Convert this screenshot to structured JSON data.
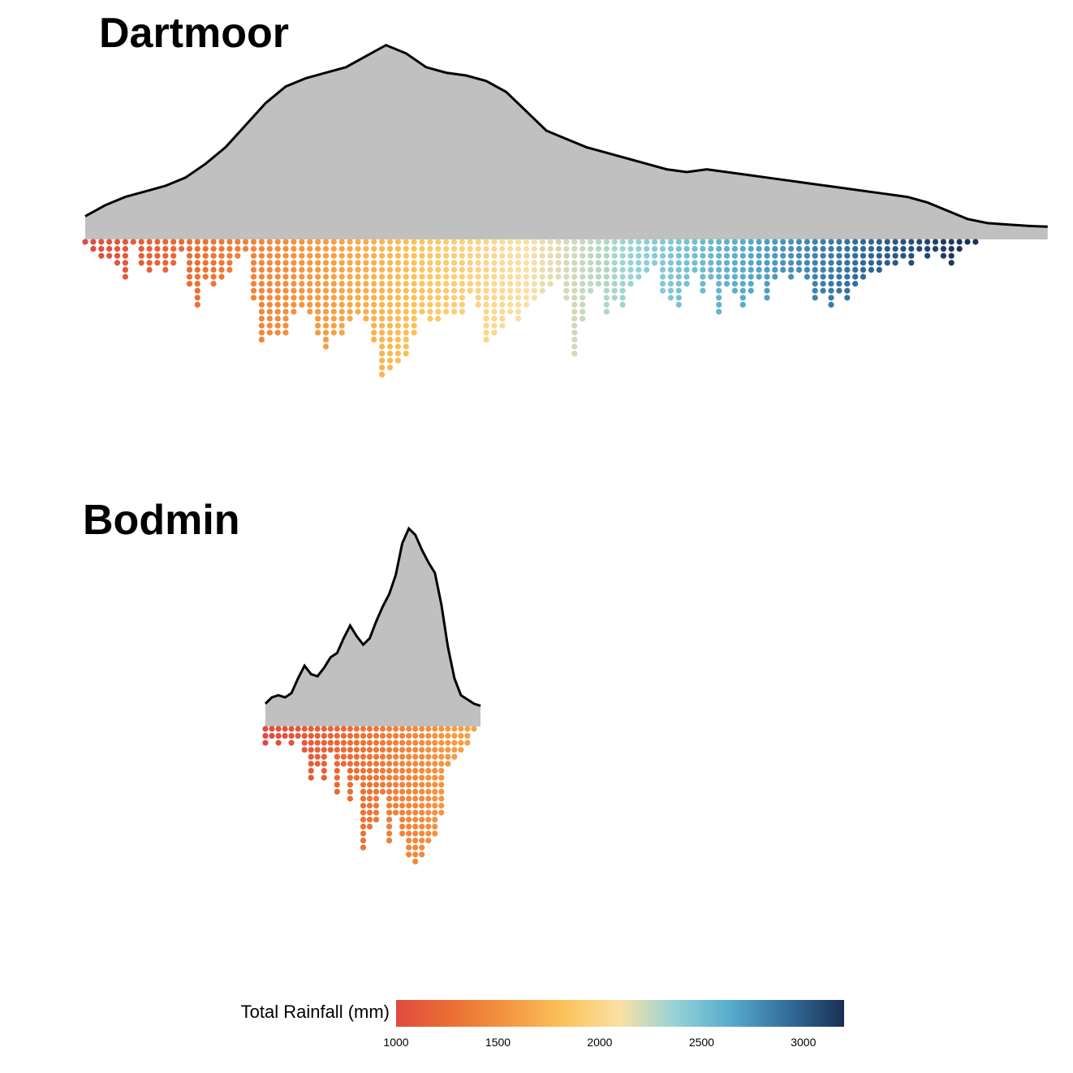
{
  "chart_data": {
    "type": "dotplot",
    "x_scale": {
      "min": 1000,
      "max": 3200
    },
    "panels": [
      {
        "title": "Dartmoor",
        "density": [
          [
            1000,
            0.04
          ],
          [
            1050,
            0.08
          ],
          [
            1100,
            0.11
          ],
          [
            1150,
            0.13
          ],
          [
            1200,
            0.15
          ],
          [
            1250,
            0.18
          ],
          [
            1300,
            0.23
          ],
          [
            1350,
            0.29
          ],
          [
            1400,
            0.37
          ],
          [
            1450,
            0.45
          ],
          [
            1500,
            0.51
          ],
          [
            1550,
            0.54
          ],
          [
            1600,
            0.56
          ],
          [
            1650,
            0.58
          ],
          [
            1700,
            0.62
          ],
          [
            1750,
            0.66
          ],
          [
            1800,
            0.63
          ],
          [
            1850,
            0.58
          ],
          [
            1900,
            0.56
          ],
          [
            1950,
            0.55
          ],
          [
            2000,
            0.53
          ],
          [
            2050,
            0.49
          ],
          [
            2100,
            0.42
          ],
          [
            2150,
            0.35
          ],
          [
            2200,
            0.32
          ],
          [
            2250,
            0.29
          ],
          [
            2300,
            0.27
          ],
          [
            2350,
            0.25
          ],
          [
            2400,
            0.23
          ],
          [
            2450,
            0.21
          ],
          [
            2500,
            0.2
          ],
          [
            2550,
            0.21
          ],
          [
            2600,
            0.2
          ],
          [
            2650,
            0.19
          ],
          [
            2700,
            0.18
          ],
          [
            2750,
            0.17
          ],
          [
            2800,
            0.16
          ],
          [
            2850,
            0.15
          ],
          [
            2900,
            0.14
          ],
          [
            2950,
            0.13
          ],
          [
            3000,
            0.12
          ],
          [
            3050,
            0.11
          ],
          [
            3100,
            0.09
          ],
          [
            3150,
            0.06
          ],
          [
            3200,
            0.03
          ],
          [
            3250,
            0.015
          ],
          [
            3300,
            0.01
          ],
          [
            3350,
            0.005
          ],
          [
            3400,
            0.002
          ]
        ],
        "stacks": [
          [
            1000,
            1
          ],
          [
            1020,
            2
          ],
          [
            1040,
            3
          ],
          [
            1060,
            3
          ],
          [
            1080,
            4
          ],
          [
            1100,
            6
          ],
          [
            1120,
            1
          ],
          [
            1140,
            4
          ],
          [
            1160,
            5
          ],
          [
            1180,
            4
          ],
          [
            1200,
            5
          ],
          [
            1220,
            4
          ],
          [
            1240,
            2
          ],
          [
            1260,
            7
          ],
          [
            1280,
            10
          ],
          [
            1300,
            6
          ],
          [
            1320,
            7
          ],
          [
            1340,
            6
          ],
          [
            1360,
            5
          ],
          [
            1380,
            3
          ],
          [
            1400,
            2
          ],
          [
            1420,
            9
          ],
          [
            1440,
            15
          ],
          [
            1460,
            14
          ],
          [
            1480,
            14
          ],
          [
            1500,
            14
          ],
          [
            1520,
            11
          ],
          [
            1540,
            10
          ],
          [
            1560,
            11
          ],
          [
            1580,
            14
          ],
          [
            1600,
            16
          ],
          [
            1620,
            14
          ],
          [
            1640,
            14
          ],
          [
            1660,
            12
          ],
          [
            1680,
            11
          ],
          [
            1700,
            12
          ],
          [
            1720,
            15
          ],
          [
            1740,
            20
          ],
          [
            1760,
            19
          ],
          [
            1780,
            18
          ],
          [
            1800,
            17
          ],
          [
            1820,
            14
          ],
          [
            1840,
            11
          ],
          [
            1860,
            12
          ],
          [
            1880,
            12
          ],
          [
            1900,
            11
          ],
          [
            1920,
            11
          ],
          [
            1940,
            11
          ],
          [
            1960,
            8
          ],
          [
            1980,
            10
          ],
          [
            2000,
            15
          ],
          [
            2020,
            14
          ],
          [
            2040,
            13
          ],
          [
            2060,
            11
          ],
          [
            2080,
            12
          ],
          [
            2100,
            10
          ],
          [
            2120,
            9
          ],
          [
            2140,
            8
          ],
          [
            2160,
            7
          ],
          [
            2180,
            6
          ],
          [
            2200,
            9
          ],
          [
            2220,
            17
          ],
          [
            2240,
            12
          ],
          [
            2260,
            8
          ],
          [
            2280,
            7
          ],
          [
            2300,
            11
          ],
          [
            2320,
            9
          ],
          [
            2340,
            10
          ],
          [
            2360,
            7
          ],
          [
            2380,
            6
          ],
          [
            2400,
            5
          ],
          [
            2420,
            4
          ],
          [
            2440,
            8
          ],
          [
            2460,
            9
          ],
          [
            2480,
            10
          ],
          [
            2500,
            7
          ],
          [
            2520,
            5
          ],
          [
            2540,
            8
          ],
          [
            2560,
            6
          ],
          [
            2580,
            11
          ],
          [
            2600,
            7
          ],
          [
            2620,
            8
          ],
          [
            2640,
            10
          ],
          [
            2660,
            8
          ],
          [
            2680,
            6
          ],
          [
            2700,
            9
          ],
          [
            2720,
            6
          ],
          [
            2740,
            5
          ],
          [
            2760,
            6
          ],
          [
            2780,
            5
          ],
          [
            2800,
            6
          ],
          [
            2820,
            9
          ],
          [
            2840,
            8
          ],
          [
            2860,
            10
          ],
          [
            2880,
            8
          ],
          [
            2900,
            9
          ],
          [
            2920,
            7
          ],
          [
            2940,
            6
          ],
          [
            2960,
            5
          ],
          [
            2980,
            5
          ],
          [
            3000,
            4
          ],
          [
            3020,
            4
          ],
          [
            3040,
            3
          ],
          [
            3060,
            4
          ],
          [
            3080,
            2
          ],
          [
            3100,
            3
          ],
          [
            3120,
            2
          ],
          [
            3140,
            3
          ],
          [
            3160,
            4
          ],
          [
            3180,
            2
          ],
          [
            3200,
            1
          ],
          [
            3220,
            1
          ]
        ]
      },
      {
        "title": "Bodmin",
        "density": [],
        "stacks": []
      }
    ],
    "legend": {
      "title": "Total Rainfall (mm)",
      "ticks": [
        "1000",
        "1500",
        "2000",
        "2500",
        "3000"
      ],
      "tick_values": [
        1000,
        1500,
        2000,
        2500,
        3000
      ],
      "range": [
        1000,
        3200
      ],
      "colors": [
        "#e04a3f",
        "#ea6f33",
        "#f49640",
        "#fbc35a",
        "#fbe0a5",
        "#93d2d7",
        "#56aacb",
        "#326d99",
        "#1b2f55"
      ]
    },
    "density_fill": "#c0c0c0"
  }
}
